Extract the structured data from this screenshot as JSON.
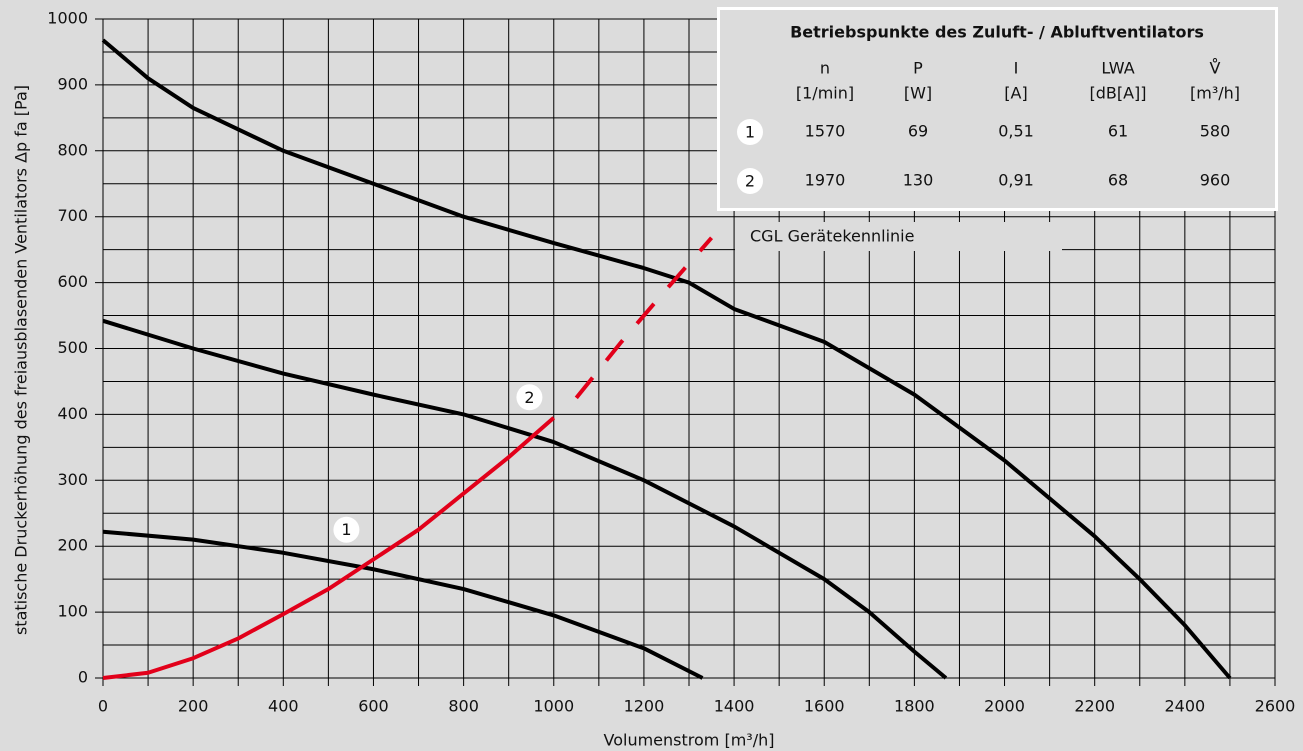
{
  "chart_data": {
    "type": "line",
    "y_label": "statische Druckerhöhung des freiausblasenden Ventilators Δp fa [Pa]",
    "x_label": "Volumenstrom [m³/h]",
    "xlim": [
      0,
      2600
    ],
    "ylim": [
      0,
      1000
    ],
    "xticks": [
      0,
      200,
      400,
      600,
      800,
      1000,
      1200,
      1400,
      1600,
      1800,
      2000,
      2200,
      2400,
      2600
    ],
    "yticks": [
      0,
      100,
      200,
      300,
      400,
      500,
      600,
      700,
      800,
      900,
      1000
    ],
    "grid": true,
    "series": [
      {
        "color": "#000000",
        "dashed": false,
        "x": [
          0,
          100,
          200,
          400,
          600,
          800,
          1000,
          1200,
          1300,
          1400,
          1600,
          1800,
          2000,
          2200,
          2300,
          2400,
          2500
        ],
        "values": [
          968,
          910,
          865,
          800,
          750,
          700,
          660,
          622,
          600,
          560,
          510,
          430,
          330,
          215,
          150,
          80,
          0
        ]
      },
      {
        "color": "#000000",
        "dashed": false,
        "x": [
          0,
          200,
          400,
          600,
          800,
          1000,
          1200,
          1400,
          1600,
          1700,
          1800,
          1870
        ],
        "values": [
          542,
          500,
          462,
          430,
          400,
          358,
          300,
          230,
          150,
          100,
          40,
          0
        ]
      },
      {
        "color": "#000000",
        "dashed": false,
        "x": [
          0,
          200,
          400,
          600,
          800,
          1000,
          1200,
          1330
        ],
        "values": [
          222,
          210,
          190,
          165,
          135,
          95,
          45,
          0
        ]
      },
      {
        "color": "#e2001a",
        "dashed": false,
        "x": [
          0,
          100,
          200,
          300,
          400,
          500,
          600,
          700,
          800,
          900,
          1000
        ],
        "values": [
          0,
          8,
          30,
          60,
          97,
          135,
          180,
          225,
          280,
          335,
          395
        ]
      },
      {
        "color": "#e2001a",
        "dashed": true,
        "x": [
          1050,
          1150,
          1250,
          1350
        ],
        "values": [
          425,
          510,
          590,
          668
        ]
      }
    ],
    "annotations": [
      {
        "text": "CGL Gerätekennlinie"
      },
      {
        "text": "1",
        "x": 540,
        "y": 225
      },
      {
        "text": "2",
        "x": 946,
        "y": 426
      }
    ],
    "table": {
      "title": "Betriebspunkte des Zuluft- / Abluftventilators",
      "header": [
        [
          "n",
          "[1/min]"
        ],
        [
          "P",
          "[W]"
        ],
        [
          "I",
          "[A]"
        ],
        [
          "LWA",
          "[dB[A]]"
        ],
        [
          "V̊",
          "[m³/h]"
        ]
      ],
      "rows": [
        [
          "1",
          1570,
          69,
          "0,51",
          61,
          580
        ],
        [
          "2",
          1970,
          130,
          "0,91",
          68,
          960
        ]
      ]
    }
  }
}
